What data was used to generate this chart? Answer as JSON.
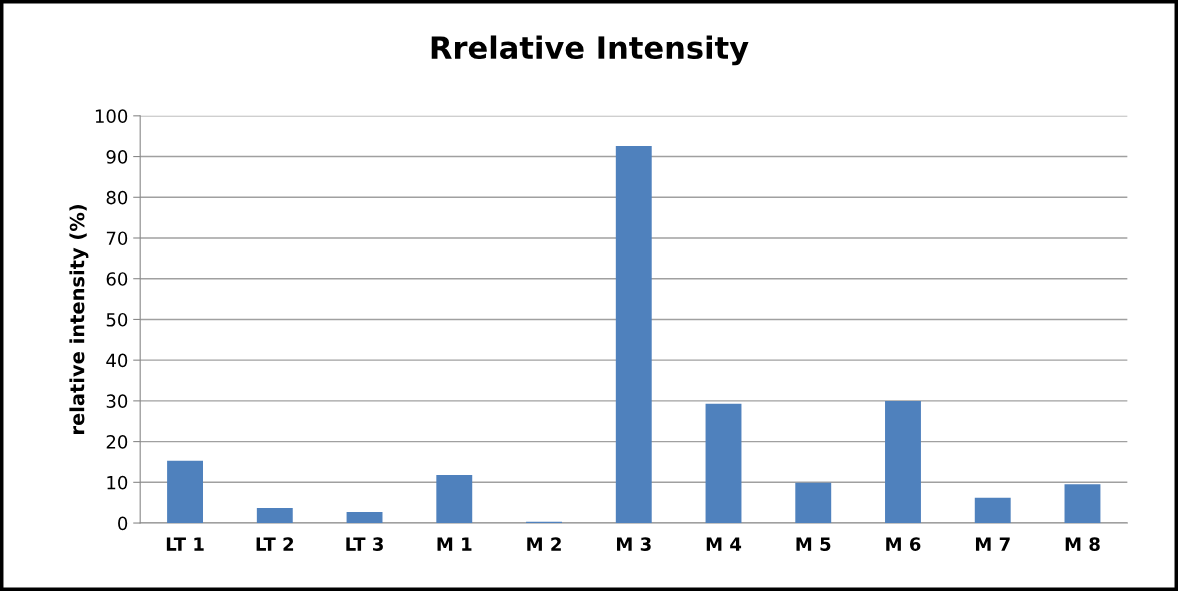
{
  "chart_data": {
    "type": "bar",
    "title": "Rrelative Intensity",
    "ylabel": "relative intensity (%)",
    "categories": [
      "LT 1",
      "LT 2",
      "LT 3",
      "M 1",
      "M 2",
      "M 3",
      "M 4",
      "M 5",
      "M 6",
      "M 7",
      "M 8"
    ],
    "values": [
      15.3,
      3.7,
      2.7,
      11.8,
      0.3,
      92.6,
      29.3,
      9.9,
      30,
      6.2,
      9.5
    ],
    "color": "#4f81bd",
    "ylim": [
      0,
      100
    ],
    "yticks": [
      0,
      10,
      20,
      30,
      40,
      50,
      60,
      70,
      80,
      90,
      100
    ],
    "grid": "y",
    "legend": false
  }
}
